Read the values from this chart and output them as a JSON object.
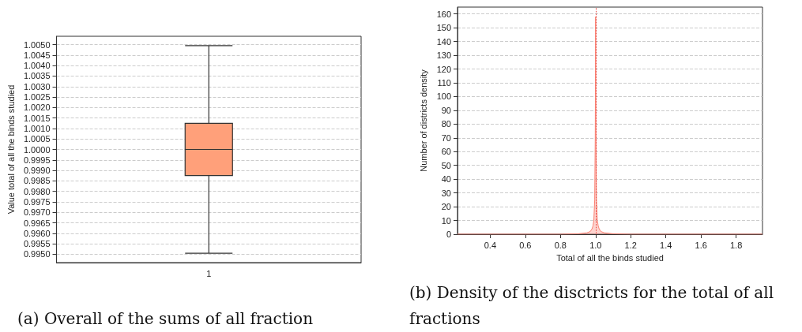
{
  "chart_data": [
    {
      "type": "box",
      "categories": [
        "1"
      ],
      "ylabel": "Value total of all the binds studied",
      "color": "#ffa07a",
      "boxes": [
        {
          "low": 0.99505,
          "q1": 0.99875,
          "median": 1.0,
          "q3": 1.00125,
          "high": 1.00495
        }
      ],
      "ylim": [
        0.9946,
        1.0054
      ],
      "yticks": [
        {
          "value": 0.995,
          "label": "0.9950"
        },
        {
          "value": 0.9955,
          "label": "0.9955"
        },
        {
          "value": 0.996,
          "label": "0.9960"
        },
        {
          "value": 0.9965,
          "label": "0.9965"
        },
        {
          "value": 0.997,
          "label": "0.9970"
        },
        {
          "value": 0.9975,
          "label": "0.9975"
        },
        {
          "value": 0.998,
          "label": "0.9980"
        },
        {
          "value": 0.9985,
          "label": "0.9985"
        },
        {
          "value": 0.999,
          "label": "0.9990"
        },
        {
          "value": 0.9995,
          "label": "0.9995"
        },
        {
          "value": 1.0,
          "label": "1.0000"
        },
        {
          "value": 1.0005,
          "label": "1.0005"
        },
        {
          "value": 1.001,
          "label": "1.0010"
        },
        {
          "value": 1.0015,
          "label": "1.0015"
        },
        {
          "value": 1.002,
          "label": "1.0020"
        },
        {
          "value": 1.0025,
          "label": "1.0025"
        },
        {
          "value": 1.003,
          "label": "1.0030"
        },
        {
          "value": 1.0035,
          "label": "1.0035"
        },
        {
          "value": 1.004,
          "label": "1.0040"
        },
        {
          "value": 1.0045,
          "label": "1.0045"
        },
        {
          "value": 1.005,
          "label": "1.0050"
        }
      ],
      "grid": "y",
      "annotations": [
        "(a) Overall of the sums of all fraction"
      ]
    },
    {
      "type": "area",
      "xlabel": "Total of all the binds studied",
      "ylabel": "Number of districts density",
      "color": "#fa8072",
      "x": [
        0.214,
        0.8,
        0.9,
        0.95,
        0.97,
        0.98,
        0.985,
        0.99,
        0.995,
        0.998,
        1.0,
        1.002,
        1.005,
        1.01,
        1.015,
        1.02,
        1.03,
        1.05,
        1.1,
        1.2,
        1.95
      ],
      "values": [
        0,
        0,
        0.3,
        1,
        2,
        4,
        6,
        10,
        25,
        70,
        158,
        70,
        25,
        10,
        6,
        4,
        2,
        1,
        0.3,
        0,
        0
      ],
      "xlim": [
        0.214,
        1.95
      ],
      "xticks": [
        0.4,
        0.6,
        0.8,
        {
          "value": 1.0,
          "label": "1.0"
        },
        1.2,
        1.4,
        1.6,
        1.8
      ],
      "ylim": [
        0,
        165
      ],
      "yticks": [
        0,
        10,
        20,
        30,
        40,
        50,
        60,
        70,
        80,
        90,
        100,
        110,
        120,
        130,
        140,
        150,
        160
      ],
      "grid": "y",
      "ref_lines": [
        {
          "axis": "x",
          "value": 1.0,
          "color": "#e8413c",
          "line_style": "dotted"
        }
      ],
      "annotations": [
        "(b) Density of the disctricts for the total of all fractions"
      ]
    }
  ]
}
